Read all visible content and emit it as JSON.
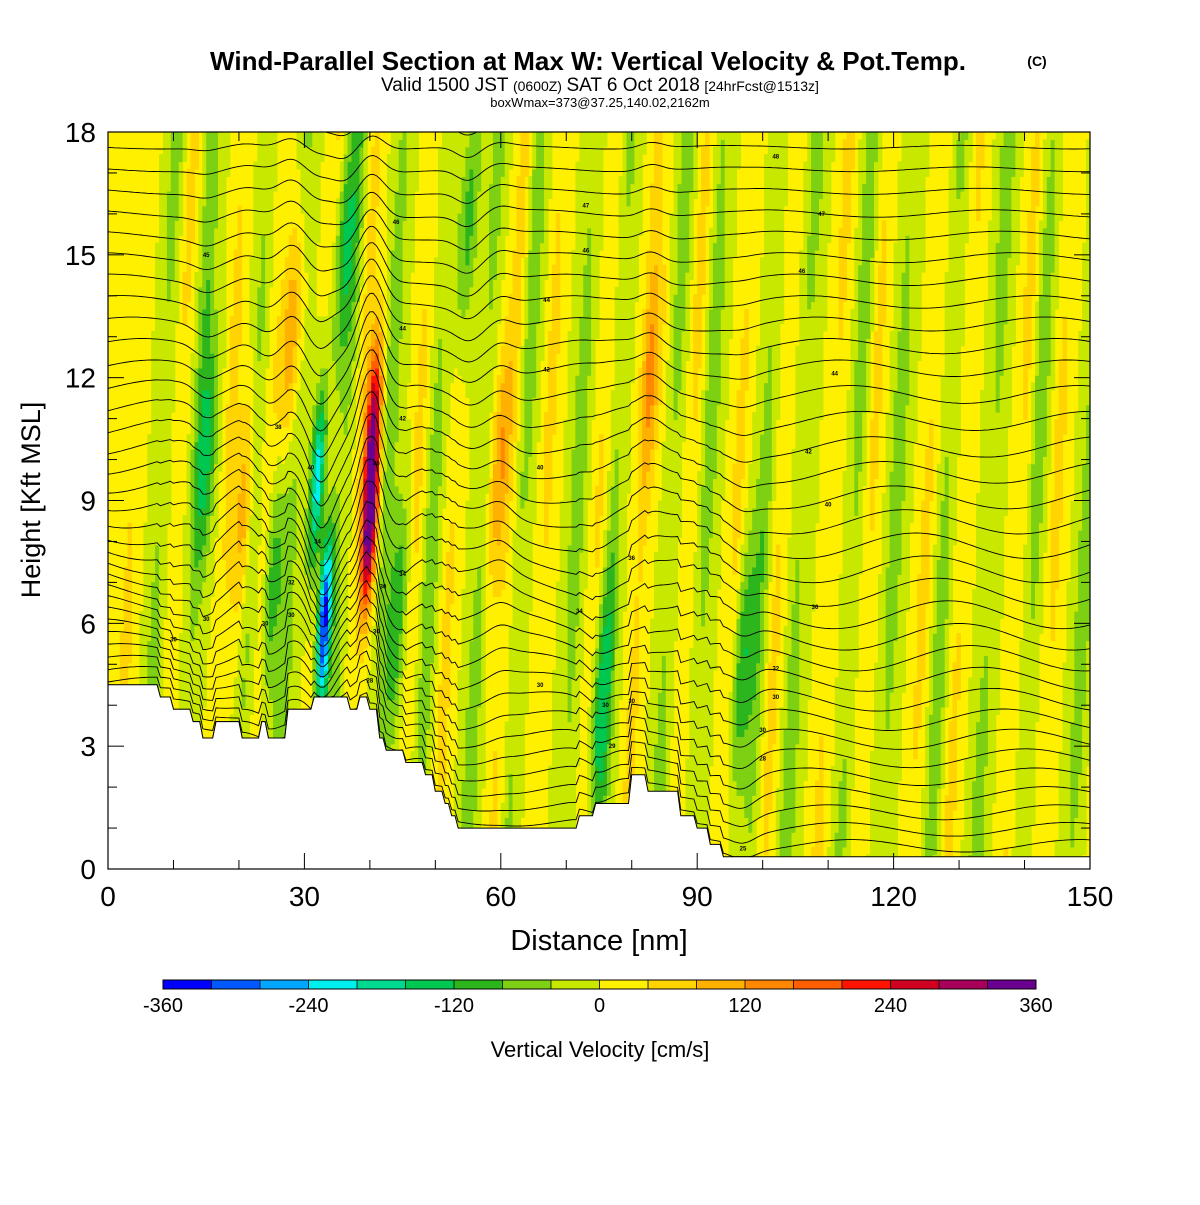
{
  "chart_data": {
    "type": "heatmap",
    "title": "Wind-Parallel Section at Max W: Vertical Velocity & Pot.Temp.",
    "title_mark": "(C)",
    "subtitle": {
      "part1": "Valid 1500 JST",
      "part2": "(0600Z)",
      "part3": "SAT 6 Oct 2018",
      "part4": "[24hrFcst@1513z]"
    },
    "subtitle2": "boxWmax=373@37.25,140.02,2162m",
    "xlabel": "Distance [nm]",
    "ylabel": "Height [Kft MSL]",
    "xlim": [
      0,
      150
    ],
    "ylim": [
      0,
      18
    ],
    "xticks": [
      0,
      30,
      60,
      90,
      120,
      150
    ],
    "yticks": [
      0,
      3,
      6,
      9,
      12,
      15,
      18
    ],
    "terrain": {
      "x": [
        0,
        7.5,
        8,
        9.5,
        10,
        12.5,
        13,
        14,
        14.5,
        16,
        16.5,
        20,
        20.5,
        23,
        23.5,
        24,
        24.5,
        27,
        27.5,
        31,
        31.5,
        36.5,
        37,
        38,
        38.5,
        39.5,
        40,
        41,
        41.5,
        42,
        42.5,
        45,
        45.5,
        48,
        48.5,
        49.5,
        50,
        51,
        51.5,
        52,
        52.5,
        53,
        53.5,
        55.5,
        56,
        70,
        70.5,
        71.5,
        72,
        74,
        74.5,
        75,
        75.5,
        78,
        78.5,
        79.5,
        80,
        81,
        81.5,
        82,
        82.5,
        87,
        87.5,
        89.5,
        90,
        91.5,
        92,
        93.5,
        94,
        150
      ],
      "height": [
        4.5,
        4.5,
        4.2,
        4.2,
        3.9,
        3.9,
        3.6,
        3.6,
        3.2,
        3.2,
        3.6,
        3.6,
        3.2,
        3.2,
        3.6,
        3.6,
        3.2,
        3.2,
        3.9,
        3.9,
        4.2,
        4.2,
        3.9,
        3.9,
        4.2,
        4.2,
        3.9,
        3.9,
        3.2,
        3.2,
        2.9,
        2.9,
        2.6,
        2.6,
        2.3,
        2.3,
        1.9,
        1.9,
        1.6,
        1.6,
        1.3,
        1.3,
        1.0,
        1.0,
        1.0,
        1.0,
        1.0,
        1.0,
        1.3,
        1.3,
        1.6,
        1.6,
        1.6,
        1.6,
        1.6,
        1.6,
        2.3,
        2.3,
        2.3,
        2.3,
        1.9,
        1.9,
        1.3,
        1.3,
        1.0,
        1.0,
        0.6,
        0.6,
        0.3,
        0.3
      ]
    },
    "vertical_velocity_features": [
      {
        "x": 33,
        "z": 6.0,
        "w": -360
      },
      {
        "x": 32,
        "z": 9.5,
        "w": -240
      },
      {
        "x": 40,
        "z": 8.5,
        "w": 360
      },
      {
        "x": 40.5,
        "z": 11.0,
        "w": 240
      },
      {
        "x": 15,
        "z": 10.0,
        "w": -120
      },
      {
        "x": 25,
        "z": 7.0,
        "w": -120
      },
      {
        "x": 36,
        "z": 15.0,
        "w": -120
      },
      {
        "x": 55,
        "z": 16.0,
        "w": -120
      },
      {
        "x": 75,
        "z": 4.0,
        "w": -120
      },
      {
        "x": 97,
        "z": 5.0,
        "w": -120
      },
      {
        "x": 44,
        "z": 6.0,
        "w": -120
      },
      {
        "x": 28,
        "z": 13.0,
        "w": 120
      },
      {
        "x": 21,
        "z": 9.0,
        "w": 120
      },
      {
        "x": 60,
        "z": 10.0,
        "w": 120
      },
      {
        "x": 83,
        "z": 12.0,
        "w": 120
      }
    ],
    "theta_contour_labels": [
      {
        "x": 10,
        "z": 5.6,
        "label": "30"
      },
      {
        "x": 15,
        "z": 6.1,
        "label": "30"
      },
      {
        "x": 24,
        "z": 6.0,
        "label": "30"
      },
      {
        "x": 28,
        "z": 6.2,
        "label": "30"
      },
      {
        "x": 28,
        "z": 7.0,
        "label": "32"
      },
      {
        "x": 31,
        "z": 9.8,
        "label": "40"
      },
      {
        "x": 32,
        "z": 8.0,
        "label": "34"
      },
      {
        "x": 26,
        "z": 10.8,
        "label": "38"
      },
      {
        "x": 15,
        "z": 15.0,
        "label": "45"
      },
      {
        "x": 41,
        "z": 5.8,
        "label": "30"
      },
      {
        "x": 42,
        "z": 6.9,
        "label": "30"
      },
      {
        "x": 45,
        "z": 7.2,
        "label": "34"
      },
      {
        "x": 41,
        "z": 9.9,
        "label": "40"
      },
      {
        "x": 45,
        "z": 11.0,
        "label": "42"
      },
      {
        "x": 45,
        "z": 13.2,
        "label": "44"
      },
      {
        "x": 44,
        "z": 15.8,
        "label": "46"
      },
      {
        "x": 40,
        "z": 4.6,
        "label": "28"
      },
      {
        "x": 66,
        "z": 4.5,
        "label": "30"
      },
      {
        "x": 66,
        "z": 9.8,
        "label": "40"
      },
      {
        "x": 67,
        "z": 12.2,
        "label": "42"
      },
      {
        "x": 67,
        "z": 13.9,
        "label": "44"
      },
      {
        "x": 73,
        "z": 15.1,
        "label": "46"
      },
      {
        "x": 73,
        "z": 16.2,
        "label": "47"
      },
      {
        "x": 72,
        "z": 6.3,
        "label": "34"
      },
      {
        "x": 76,
        "z": 4.0,
        "label": "30"
      },
      {
        "x": 77,
        "z": 3.0,
        "label": "29"
      },
      {
        "x": 80,
        "z": 7.6,
        "label": "36"
      },
      {
        "x": 80,
        "z": 4.1,
        "label": "30"
      },
      {
        "x": 102,
        "z": 17.4,
        "label": "48"
      },
      {
        "x": 109,
        "z": 16.0,
        "label": "47"
      },
      {
        "x": 106,
        "z": 14.6,
        "label": "46"
      },
      {
        "x": 111,
        "z": 12.1,
        "label": "44"
      },
      {
        "x": 107,
        "z": 10.2,
        "label": "42"
      },
      {
        "x": 110,
        "z": 8.9,
        "label": "40"
      },
      {
        "x": 108,
        "z": 6.4,
        "label": "36"
      },
      {
        "x": 102,
        "z": 4.9,
        "label": "32"
      },
      {
        "x": 102,
        "z": 4.2,
        "label": "30"
      },
      {
        "x": 100,
        "z": 3.4,
        "label": "30"
      },
      {
        "x": 100,
        "z": 2.7,
        "label": "28"
      },
      {
        "x": 97,
        "z": 0.5,
        "label": "25"
      }
    ],
    "colorbar": {
      "label": "Vertical Velocity [cm/s]",
      "range": [
        -360,
        360
      ],
      "tick_labels": [
        "-360",
        "-240",
        "-120",
        "0",
        "120",
        "240",
        "360"
      ],
      "colors": [
        "#0000ff",
        "#0059ff",
        "#00a6ff",
        "#00f0f0",
        "#00d98f",
        "#00c750",
        "#2db51d",
        "#7dd012",
        "#c8e800",
        "#fff000",
        "#ffd400",
        "#ffb100",
        "#ff8800",
        "#ff5f00",
        "#ff1400",
        "#d00020",
        "#a8005a",
        "#6a0090"
      ]
    }
  }
}
